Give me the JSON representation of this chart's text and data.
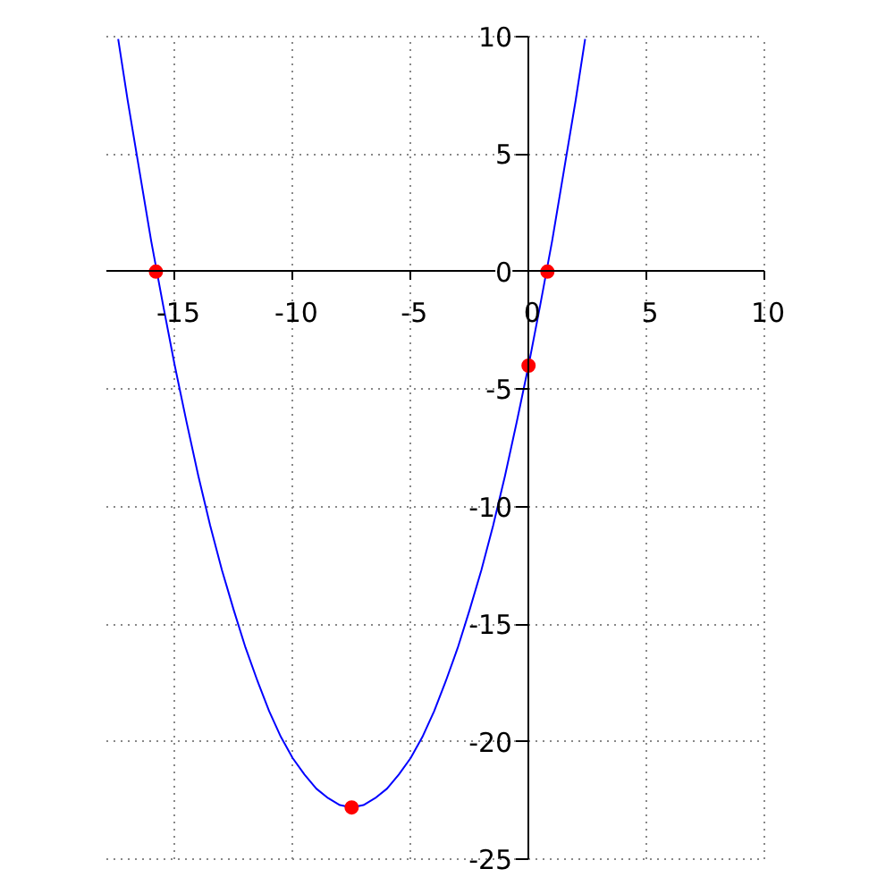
{
  "chart_data": {
    "type": "line",
    "series": [
      {
        "color": "#0000ff",
        "line_style": "solid",
        "x": [
          -17.4,
          -17,
          -16.5,
          -16,
          -15.5,
          -15,
          -14.5,
          -14,
          -13.5,
          -13,
          -12.5,
          -12,
          -11.5,
          -11,
          -10.5,
          -10,
          -9.5,
          -9,
          -8.5,
          -8,
          -7.5,
          -7,
          -6.5,
          -6,
          -5.5,
          -5,
          -4.5,
          -4,
          -3.5,
          -3,
          -2.5,
          -2,
          -1.5,
          -1,
          -0.5,
          0,
          0.5,
          1,
          1.5,
          2,
          2.4
        ],
        "values": [
          9.9,
          7.3,
          4.3,
          1.3,
          -1.4,
          -4,
          -6.4,
          -8.7,
          -10.8,
          -12.7,
          -14.4,
          -16,
          -17.4,
          -18.7,
          -19.8,
          -20.7,
          -21.4,
          -22,
          -22.4,
          -22.7,
          -22.8,
          -22.7,
          -22.4,
          -22,
          -21.4,
          -20.7,
          -19.8,
          -18.7,
          -17.4,
          -16,
          -14.4,
          -12.7,
          -10.8,
          -8.7,
          -6.4,
          -4,
          -1.4,
          1.3,
          4.3,
          7.3,
          9.9
        ]
      },
      {
        "type": "scatter",
        "color": "#ff0000",
        "marker": "circle",
        "x": [
          -15.8,
          0.8,
          0,
          -7.5
        ],
        "values": [
          0,
          0,
          -4,
          -22.8
        ]
      }
    ],
    "xlim": [
      -17.9,
      10
    ],
    "ylim": [
      -25,
      10
    ],
    "xticks": [
      -15,
      -10,
      -5,
      0,
      5,
      10
    ],
    "yticks": [
      -25,
      -20,
      -15,
      -10,
      -5,
      0,
      5,
      10
    ],
    "grid": true
  }
}
